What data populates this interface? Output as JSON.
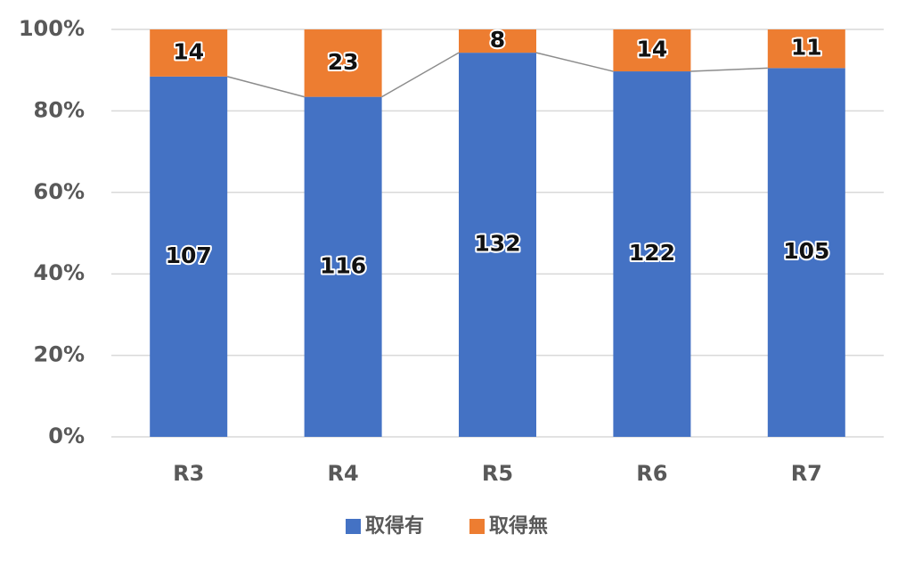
{
  "chart_data": {
    "type": "bar",
    "stacking": "percent",
    "categories": [
      "R3",
      "R4",
      "R5",
      "R6",
      "R7"
    ],
    "series": [
      {
        "name": "取得有",
        "color": "#4472c4",
        "values": [
          107,
          116,
          132,
          122,
          105
        ]
      },
      {
        "name": "取得無",
        "color": "#ed7d31",
        "values": [
          14,
          23,
          8,
          14,
          11
        ]
      }
    ],
    "ylim": [
      0,
      100
    ],
    "yticks": [
      {
        "value": 0,
        "label": "0%"
      },
      {
        "value": 20,
        "label": "20%"
      },
      {
        "value": 40,
        "label": "40%"
      },
      {
        "value": 60,
        "label": "60%"
      },
      {
        "value": 80,
        "label": "80%"
      },
      {
        "value": 100,
        "label": "100%"
      }
    ],
    "grid": true,
    "series_lines": true,
    "legend": "bottom"
  }
}
